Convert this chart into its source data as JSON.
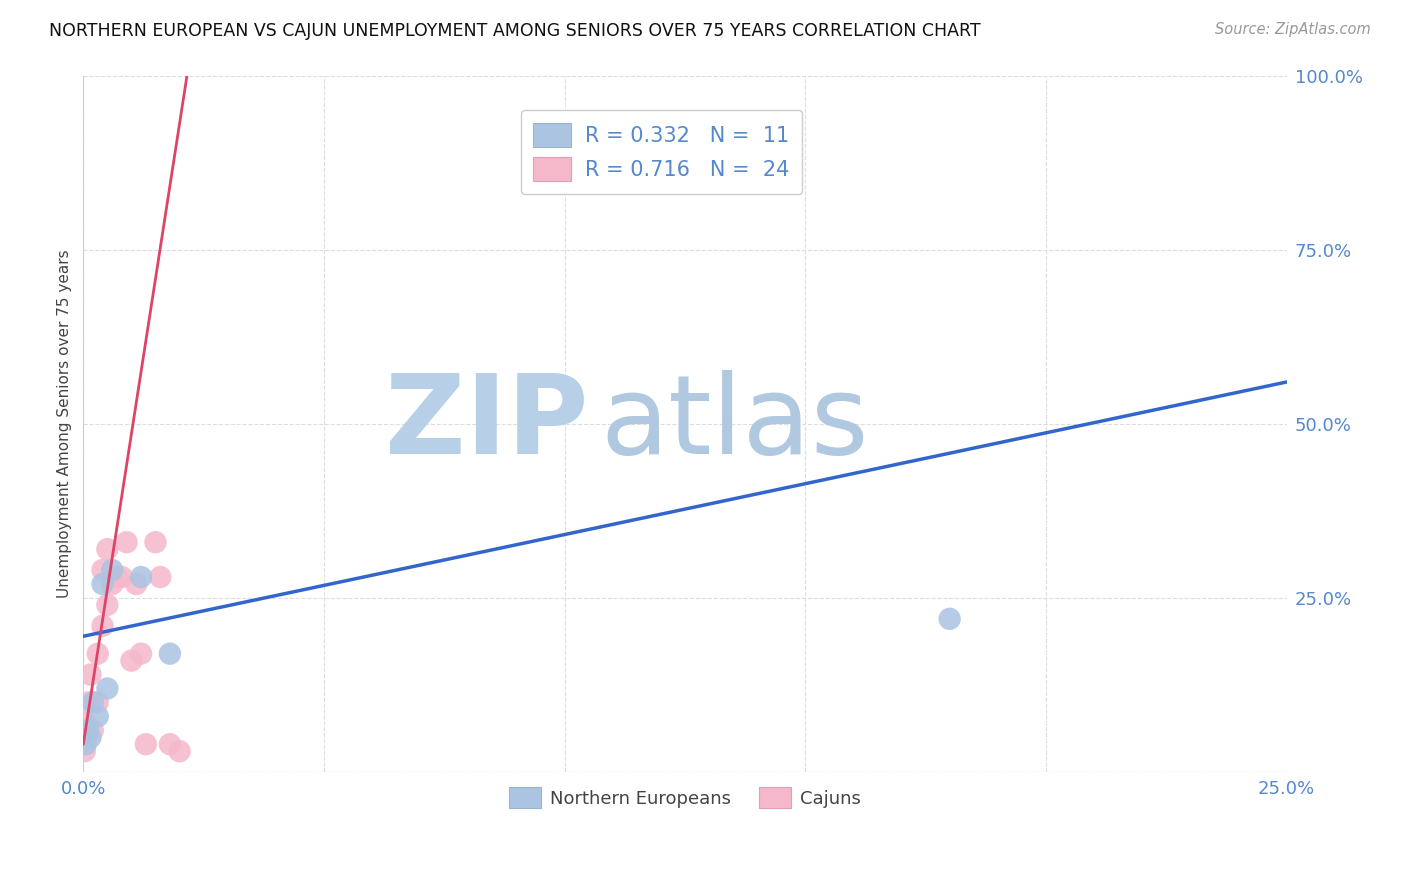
{
  "title": "NORTHERN EUROPEAN VS CAJUN UNEMPLOYMENT AMONG SENIORS OVER 75 YEARS CORRELATION CHART",
  "source": "Source: ZipAtlas.com",
  "ylabel": "Unemployment Among Seniors over 75 years",
  "xlim": [
    0.0,
    0.25
  ],
  "ylim": [
    0.0,
    1.0
  ],
  "xtick_vals": [
    0.0,
    0.05,
    0.1,
    0.15,
    0.2,
    0.25
  ],
  "ytick_vals": [
    0.0,
    0.25,
    0.5,
    0.75,
    1.0
  ],
  "ne_pts_x": [
    0.0005,
    0.001,
    0.0015,
    0.002,
    0.003,
    0.004,
    0.005,
    0.006,
    0.012,
    0.018,
    0.18
  ],
  "ne_pts_y": [
    0.04,
    0.06,
    0.05,
    0.1,
    0.08,
    0.27,
    0.12,
    0.29,
    0.28,
    0.17,
    0.22
  ],
  "cajun_pts_x": [
    0.0003,
    0.0005,
    0.001,
    0.001,
    0.0015,
    0.002,
    0.003,
    0.003,
    0.004,
    0.004,
    0.005,
    0.005,
    0.006,
    0.007,
    0.008,
    0.009,
    0.01,
    0.011,
    0.012,
    0.013,
    0.015,
    0.016,
    0.018,
    0.02
  ],
  "cajun_pts_y": [
    0.03,
    0.07,
    0.06,
    0.1,
    0.14,
    0.06,
    0.1,
    0.17,
    0.21,
    0.29,
    0.24,
    0.32,
    0.27,
    0.28,
    0.28,
    0.33,
    0.16,
    0.27,
    0.17,
    0.04,
    0.33,
    0.28,
    0.04,
    0.03
  ],
  "ne_line_x0": 0.0,
  "ne_line_y0": 0.195,
  "ne_line_x1": 0.25,
  "ne_line_y1": 0.56,
  "cajun_line_x0": 0.0,
  "cajun_line_y0": 0.04,
  "cajun_line_x1": 0.022,
  "cajun_line_y1": 1.02,
  "ne_color": "#aac4e2",
  "cajun_color": "#f5b8cb",
  "ne_line_color": "#3366cc",
  "cajun_line_color": "#dd4466",
  "ne_R": 0.332,
  "ne_N": 11,
  "cajun_R": 0.716,
  "cajun_N": 24,
  "watermark_zip_color": "#b8cfe8",
  "watermark_atlas_color": "#b0c8e0",
  "background_color": "#ffffff",
  "grid_color": "#dddddd",
  "tick_color": "#5588cc",
  "title_color": "#111111",
  "source_color": "#999999",
  "ylabel_color": "#444444"
}
